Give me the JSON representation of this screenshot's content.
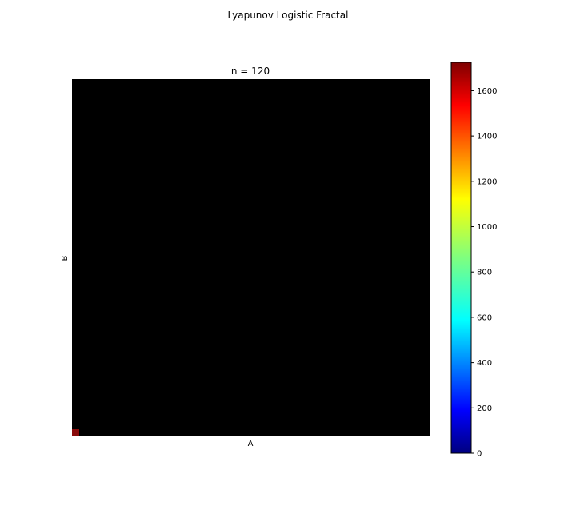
{
  "chart_data": {
    "type": "heatmap",
    "suptitle": "Lyapunov Logistic Fractal",
    "title": "n = 120",
    "xlabel": "A",
    "ylabel": "B",
    "colormap": "jet",
    "background_color": "#000000",
    "highlight_cell_color": "#8a0b0b",
    "highlight_cell": "bottom-left",
    "colorbar": {
      "min": 0,
      "max": 1725,
      "ticks": [
        0,
        200,
        400,
        600,
        800,
        1000,
        1200,
        1400,
        1600
      ],
      "tick_labels": [
        "0",
        "200",
        "400",
        "600",
        "800",
        "1000",
        "1200",
        "1400",
        "1600"
      ],
      "colors": [
        "#00007f",
        "#0000ff",
        "#007fff",
        "#00ffff",
        "#7fff7f",
        "#ffff00",
        "#ff7f00",
        "#ff0000",
        "#7f0000"
      ]
    }
  }
}
